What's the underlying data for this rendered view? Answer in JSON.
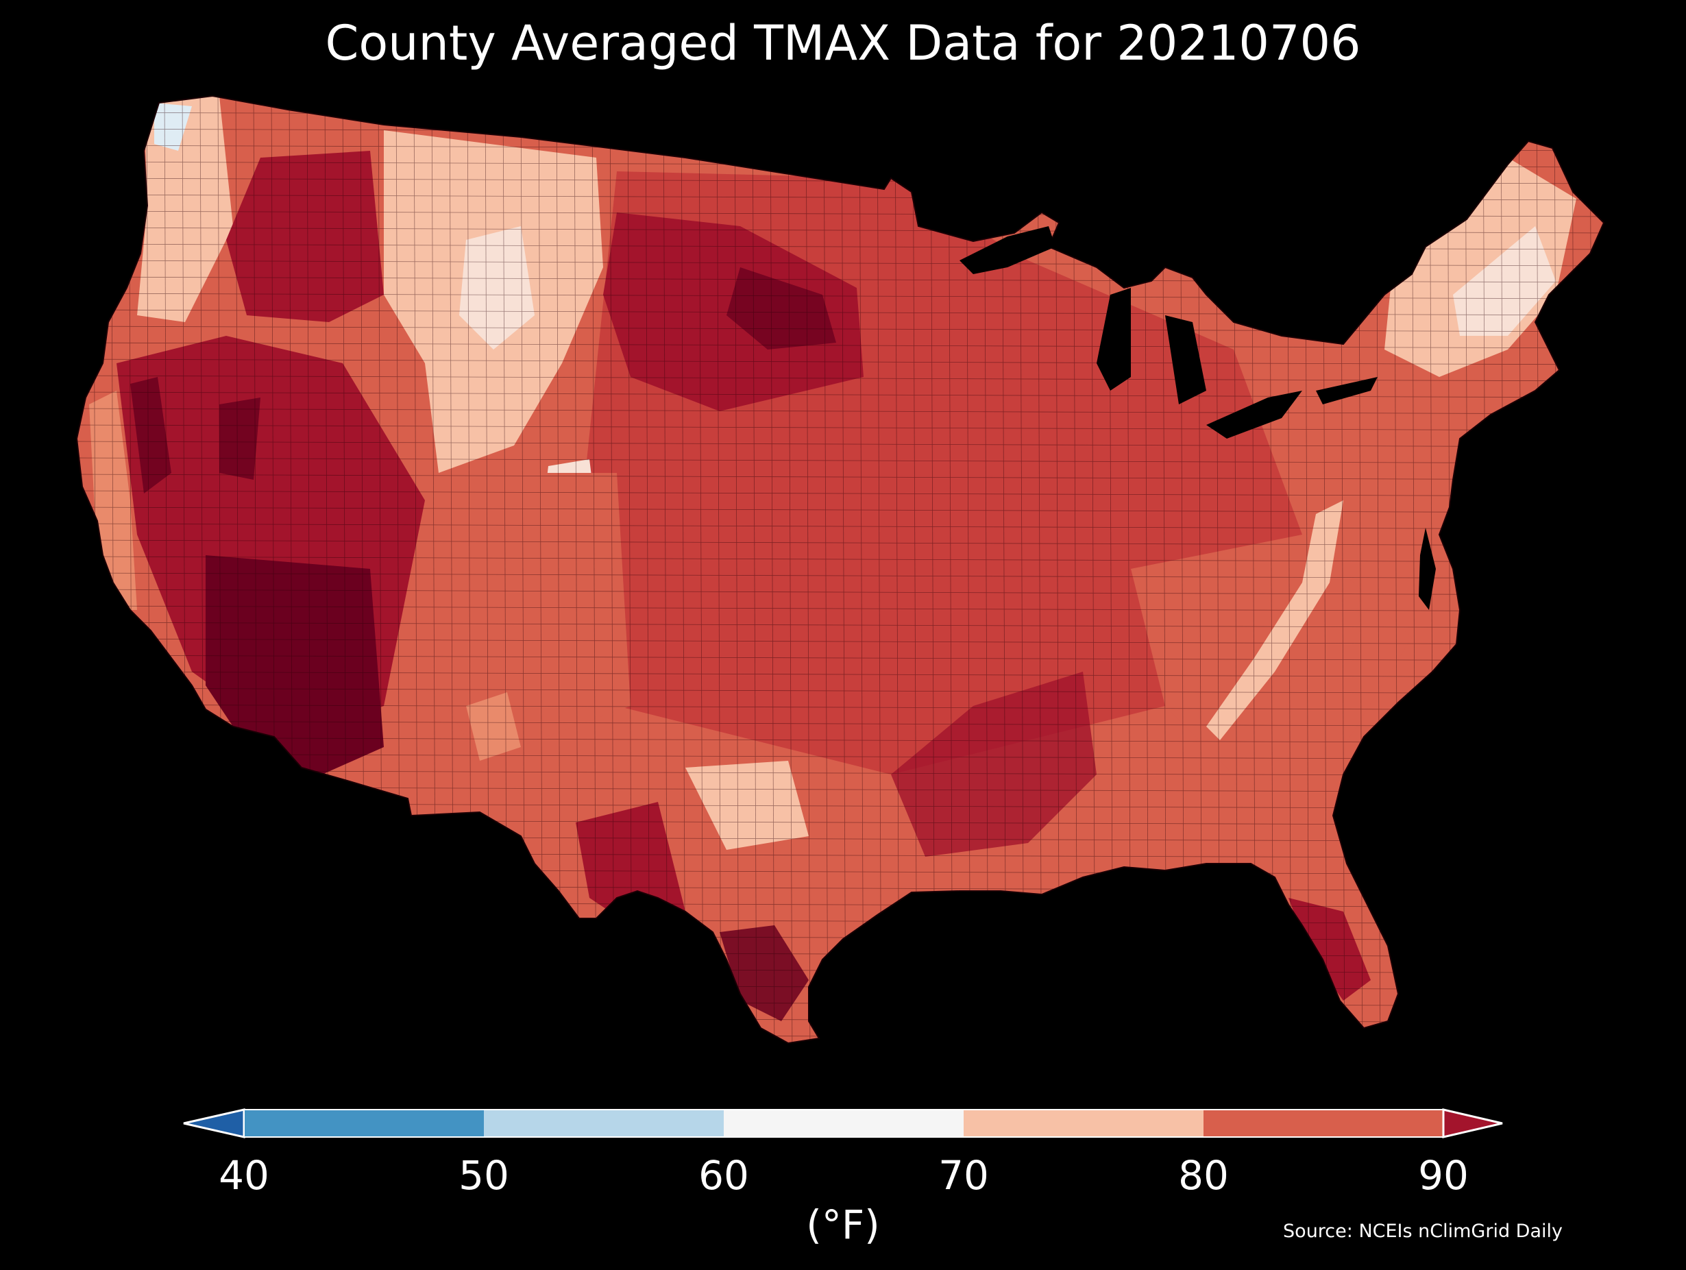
{
  "title": "County Averaged TMAX Data for 20210706",
  "colorbar": {
    "ticks": [
      "40",
      "50",
      "60",
      "70",
      "80",
      "90"
    ],
    "unit": "(°F)",
    "bins": [
      {
        "range": [
          40,
          50
        ],
        "color": "#4393c3"
      },
      {
        "range": [
          50,
          60
        ],
        "color": "#b6d6e9"
      },
      {
        "range": [
          60,
          70
        ],
        "color": "#f5f5f5"
      },
      {
        "range": [
          70,
          80
        ],
        "color": "#f7c1a6"
      },
      {
        "range": [
          80,
          90
        ],
        "color": "#d85f4c"
      }
    ],
    "under_color": "#1f5fa6",
    "over_color": "#a3142c"
  },
  "source": "Source: NCEIs nClimGrid Daily",
  "colors": {
    "background": "#000000",
    "hottest": "#6b001f",
    "very_hot": "#a3142c",
    "hot": "#c63a3a",
    "warm": "#d85f4c",
    "mild": "#e98a6b",
    "cool": "#f7c1a6",
    "cooler": "#f8e1d6",
    "coolest": "#dfecf4"
  }
}
